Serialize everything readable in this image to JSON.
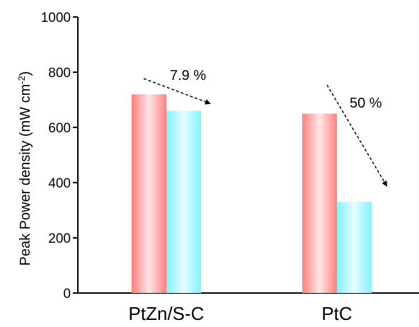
{
  "chart_data": {
    "type": "bar",
    "categories": [
      "PtZn/S-C",
      "PtC"
    ],
    "series": [
      {
        "values": [
          720,
          650
        ],
        "color": "#ff8a8a"
      },
      {
        "values": [
          660,
          330
        ],
        "color": "#8af4ff"
      }
    ],
    "ylabel_main": "Peak Power density (mW  cm",
    "ylabel_sup": "-2",
    "ylabel_end": ")",
    "ylim": [
      0,
      1000
    ],
    "yticks": [
      "0",
      "200",
      "400",
      "600",
      "800",
      "1000"
    ],
    "grid": false,
    "annotations": [
      {
        "text": "7.9 %",
        "category": "PtZn/S-C"
      },
      {
        "text": "50 %",
        "category": "PtC"
      }
    ]
  }
}
